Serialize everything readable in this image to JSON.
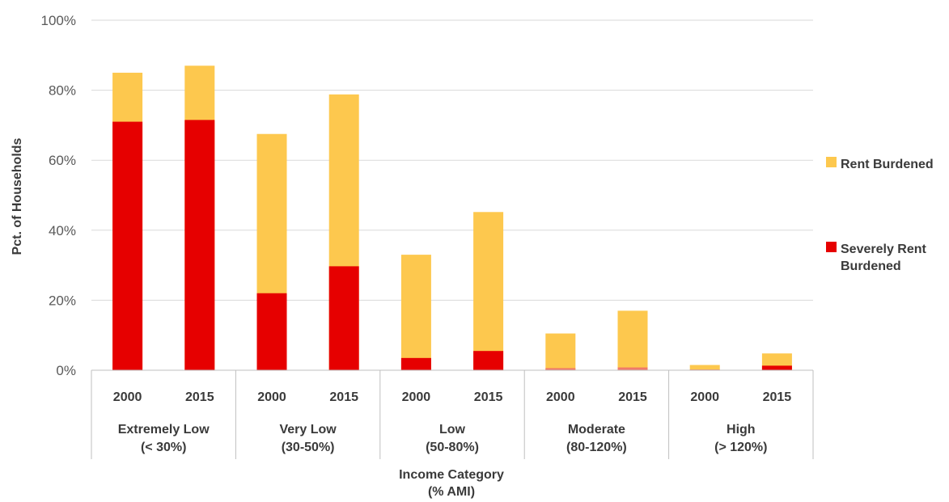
{
  "chart_data": {
    "type": "bar",
    "stacked": false,
    "overlap": true,
    "ylabel": "Pct. of Households",
    "xlabel_lines": [
      "Income Category",
      "(% AMI)"
    ],
    "ylim": [
      0,
      100
    ],
    "y_ticks": [
      "0%",
      "20%",
      "40%",
      "60%",
      "80%",
      "100%"
    ],
    "y_tick_values": [
      0,
      20,
      40,
      60,
      80,
      100
    ],
    "grid": true,
    "legend_position": "right",
    "groups": [
      {
        "label_lines": [
          "Extremely Low",
          "(< 30%)"
        ],
        "years": [
          "2000",
          "2015"
        ]
      },
      {
        "label_lines": [
          "Very Low",
          "(30-50%)"
        ],
        "years": [
          "2000",
          "2015"
        ]
      },
      {
        "label_lines": [
          "Low",
          "(50-80%)"
        ],
        "years": [
          "2000",
          "2015"
        ]
      },
      {
        "label_lines": [
          "Moderate",
          "(80-120%)"
        ],
        "years": [
          "2000",
          "2015"
        ]
      },
      {
        "label_lines": [
          "High",
          "(> 120%)"
        ],
        "years": [
          "2000",
          "2015"
        ]
      }
    ],
    "series": [
      {
        "name": "Rent Burdened",
        "color": "#FDC84E",
        "values": [
          85,
          87,
          67.5,
          78.8,
          33,
          45.2,
          10.5,
          17,
          1.5,
          4.8
        ]
      },
      {
        "name": "Severely Rent Burdened",
        "color": "#E60000",
        "values": [
          71,
          71.5,
          22,
          29.7,
          3.5,
          5.5,
          0.6,
          0.8,
          0.2,
          1.3
        ]
      }
    ],
    "low_value_color": "#F07A6A"
  }
}
